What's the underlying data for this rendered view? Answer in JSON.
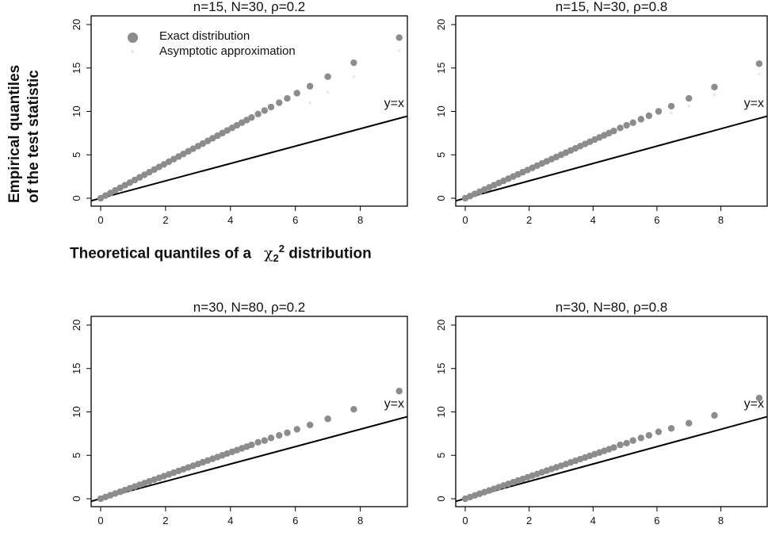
{
  "figure": {
    "ylabel_line1": "Empirical quantiles",
    "ylabel_line2": "of the test statistic",
    "xlabel_prefix": "Theoretical quantiles of a",
    "xlabel_symbol": "χ",
    "xlabel_sub": "2",
    "xlabel_sup": "2",
    "xlabel_suffix": "distribution",
    "legend": [
      "Exact distribution",
      "Asymptotic approximation"
    ],
    "reference_label": "y=x",
    "colors": {
      "exact": "#8c8c8c",
      "asymptotic": "#e8e8e8",
      "line": "#000000"
    }
  },
  "chart_data": [
    {
      "type": "scatter",
      "title": "n=15, N=30,  ρ=0.2",
      "xlim": [
        0,
        9.5
      ],
      "ylim": [
        0,
        20
      ],
      "xticks": [
        0,
        2,
        4,
        6,
        8
      ],
      "yticks": [
        0,
        5,
        10,
        15,
        20
      ],
      "series": [
        {
          "name": "Exact distribution",
          "x": [
            0.0,
            0.15,
            0.3,
            0.45,
            0.6,
            0.75,
            0.9,
            1.05,
            1.2,
            1.35,
            1.5,
            1.65,
            1.8,
            1.95,
            2.1,
            2.25,
            2.4,
            2.55,
            2.7,
            2.85,
            3.0,
            3.15,
            3.3,
            3.45,
            3.6,
            3.75,
            3.9,
            4.05,
            4.2,
            4.35,
            4.5,
            4.65,
            4.85,
            5.05,
            5.25,
            5.5,
            5.75,
            6.05,
            6.45,
            7.0,
            7.8,
            9.2
          ],
          "y": [
            0.0,
            0.3,
            0.6,
            0.9,
            1.2,
            1.5,
            1.8,
            2.1,
            2.4,
            2.7,
            3.0,
            3.3,
            3.6,
            3.9,
            4.2,
            4.5,
            4.8,
            5.1,
            5.4,
            5.7,
            6.0,
            6.3,
            6.6,
            6.9,
            7.2,
            7.5,
            7.8,
            8.1,
            8.4,
            8.7,
            9.0,
            9.3,
            9.7,
            10.1,
            10.5,
            11.0,
            11.5,
            12.1,
            12.9,
            14.0,
            15.6,
            18.5
          ]
        },
        {
          "name": "Asymptotic approximation",
          "x": [
            6.45,
            7.0,
            7.8,
            9.2
          ],
          "y": [
            11.0,
            12.2,
            14.0,
            17.0
          ]
        }
      ],
      "reference": "y=x"
    },
    {
      "type": "scatter",
      "title": "n=15, N=30,  ρ=0.8",
      "xlim": [
        0,
        9.5
      ],
      "ylim": [
        0,
        20
      ],
      "xticks": [
        0,
        2,
        4,
        6,
        8
      ],
      "yticks": [
        0,
        5,
        10,
        15,
        20
      ],
      "series": [
        {
          "name": "Exact distribution",
          "x": [
            0.0,
            0.15,
            0.3,
            0.45,
            0.6,
            0.75,
            0.9,
            1.05,
            1.2,
            1.35,
            1.5,
            1.65,
            1.8,
            1.95,
            2.1,
            2.25,
            2.4,
            2.55,
            2.7,
            2.85,
            3.0,
            3.15,
            3.3,
            3.45,
            3.6,
            3.75,
            3.9,
            4.05,
            4.2,
            4.35,
            4.5,
            4.65,
            4.85,
            5.05,
            5.25,
            5.5,
            5.75,
            6.05,
            6.45,
            7.0,
            7.8,
            9.2
          ],
          "y": [
            0.0,
            0.25,
            0.5,
            0.75,
            1.0,
            1.25,
            1.5,
            1.75,
            2.0,
            2.25,
            2.5,
            2.75,
            3.0,
            3.25,
            3.5,
            3.75,
            4.0,
            4.25,
            4.5,
            4.75,
            5.0,
            5.25,
            5.5,
            5.75,
            6.0,
            6.25,
            6.5,
            6.75,
            7.0,
            7.25,
            7.5,
            7.75,
            8.1,
            8.4,
            8.7,
            9.1,
            9.5,
            10.0,
            10.6,
            11.5,
            12.8,
            15.5
          ]
        },
        {
          "name": "Asymptotic approximation",
          "x": [
            6.45,
            7.0,
            7.8,
            9.2
          ],
          "y": [
            9.8,
            10.6,
            11.9,
            14.3
          ]
        }
      ],
      "reference": "y=x"
    },
    {
      "type": "scatter",
      "title": "n=30, N=80,  ρ=0.2",
      "xlim": [
        0,
        9.5
      ],
      "ylim": [
        0,
        20
      ],
      "xticks": [
        0,
        2,
        4,
        6,
        8
      ],
      "yticks": [
        0,
        5,
        10,
        15,
        20
      ],
      "series": [
        {
          "name": "Exact distribution",
          "x": [
            0.0,
            0.15,
            0.3,
            0.45,
            0.6,
            0.75,
            0.9,
            1.05,
            1.2,
            1.35,
            1.5,
            1.65,
            1.8,
            1.95,
            2.1,
            2.25,
            2.4,
            2.55,
            2.7,
            2.85,
            3.0,
            3.15,
            3.3,
            3.45,
            3.6,
            3.75,
            3.9,
            4.05,
            4.2,
            4.35,
            4.5,
            4.65,
            4.85,
            5.05,
            5.25,
            5.5,
            5.75,
            6.05,
            6.45,
            7.0,
            7.8,
            9.2
          ],
          "y": [
            0.0,
            0.2,
            0.4,
            0.6,
            0.8,
            1.0,
            1.2,
            1.4,
            1.6,
            1.8,
            2.0,
            2.2,
            2.4,
            2.6,
            2.8,
            3.0,
            3.2,
            3.4,
            3.6,
            3.8,
            4.0,
            4.2,
            4.4,
            4.6,
            4.8,
            5.0,
            5.2,
            5.4,
            5.6,
            5.8,
            6.0,
            6.2,
            6.5,
            6.7,
            7.0,
            7.3,
            7.6,
            8.0,
            8.5,
            9.2,
            10.3,
            12.4
          ]
        },
        {
          "name": "Asymptotic approximation",
          "x": [],
          "y": []
        }
      ],
      "reference": "y=x"
    },
    {
      "type": "scatter",
      "title": "n=30, N=80,  ρ=0.8",
      "xlim": [
        0,
        9.5
      ],
      "ylim": [
        0,
        20
      ],
      "xticks": [
        0,
        2,
        4,
        6,
        8
      ],
      "yticks": [
        0,
        5,
        10,
        15,
        20
      ],
      "series": [
        {
          "name": "Exact distribution",
          "x": [
            0.0,
            0.15,
            0.3,
            0.45,
            0.6,
            0.75,
            0.9,
            1.05,
            1.2,
            1.35,
            1.5,
            1.65,
            1.8,
            1.95,
            2.1,
            2.25,
            2.4,
            2.55,
            2.7,
            2.85,
            3.0,
            3.15,
            3.3,
            3.45,
            3.6,
            3.75,
            3.9,
            4.05,
            4.2,
            4.35,
            4.5,
            4.65,
            4.85,
            5.05,
            5.25,
            5.5,
            5.75,
            6.05,
            6.45,
            7.0,
            7.8,
            9.2
          ],
          "y": [
            0.0,
            0.19,
            0.38,
            0.57,
            0.76,
            0.95,
            1.14,
            1.33,
            1.52,
            1.71,
            1.9,
            2.09,
            2.28,
            2.47,
            2.66,
            2.85,
            3.04,
            3.23,
            3.42,
            3.61,
            3.8,
            3.99,
            4.18,
            4.37,
            4.56,
            4.75,
            4.94,
            5.13,
            5.32,
            5.51,
            5.7,
            5.9,
            6.2,
            6.4,
            6.7,
            7.0,
            7.3,
            7.7,
            8.1,
            8.7,
            9.6,
            11.6
          ]
        },
        {
          "name": "Asymptotic approximation",
          "x": [],
          "y": []
        }
      ],
      "reference": "y=x"
    }
  ]
}
